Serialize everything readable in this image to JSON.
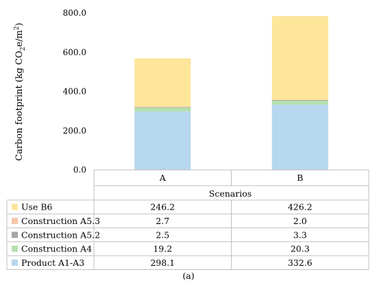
{
  "chart_data": {
    "type": "bar",
    "stacked": true,
    "categories": [
      "A",
      "B"
    ],
    "ylabel_main": "Carbon footprint (kg CO",
    "ylabel_sub": "2",
    "ylabel_tail": "e/m",
    "ylabel_sup": "2",
    "ylabel_close": ")",
    "xlabel": "Scenarios",
    "ylim": [
      0,
      800
    ],
    "yticks": [
      "0.0",
      "200.0",
      "400.0",
      "600.0",
      "800.0"
    ],
    "ytick_values": [
      0,
      200,
      400,
      600,
      800
    ],
    "grid": false,
    "legend_placement": "data-table",
    "series": [
      {
        "name": "Product A1-A3",
        "values": [
          298.1,
          332.6
        ],
        "labels": [
          "298.1",
          "332.6"
        ],
        "color": "#b7d7ef"
      },
      {
        "name": "Construction A4",
        "values": [
          19.2,
          20.3
        ],
        "labels": [
          "19.2",
          "20.3"
        ],
        "color": "#b5dfae"
      },
      {
        "name": "Construction A5.2",
        "values": [
          2.5,
          3.3
        ],
        "labels": [
          "2.5",
          "3.3"
        ],
        "color": "#a6a6a6"
      },
      {
        "name": "Construction A5.3",
        "values": [
          2.7,
          2.0
        ],
        "labels": [
          "2.7",
          "2.0"
        ],
        "color": "#f6c7a8"
      },
      {
        "name": "Use B6",
        "values": [
          246.2,
          426.2
        ],
        "labels": [
          "246.2",
          "426.2"
        ],
        "color": "#fde69a"
      }
    ]
  },
  "caption": "(a)"
}
